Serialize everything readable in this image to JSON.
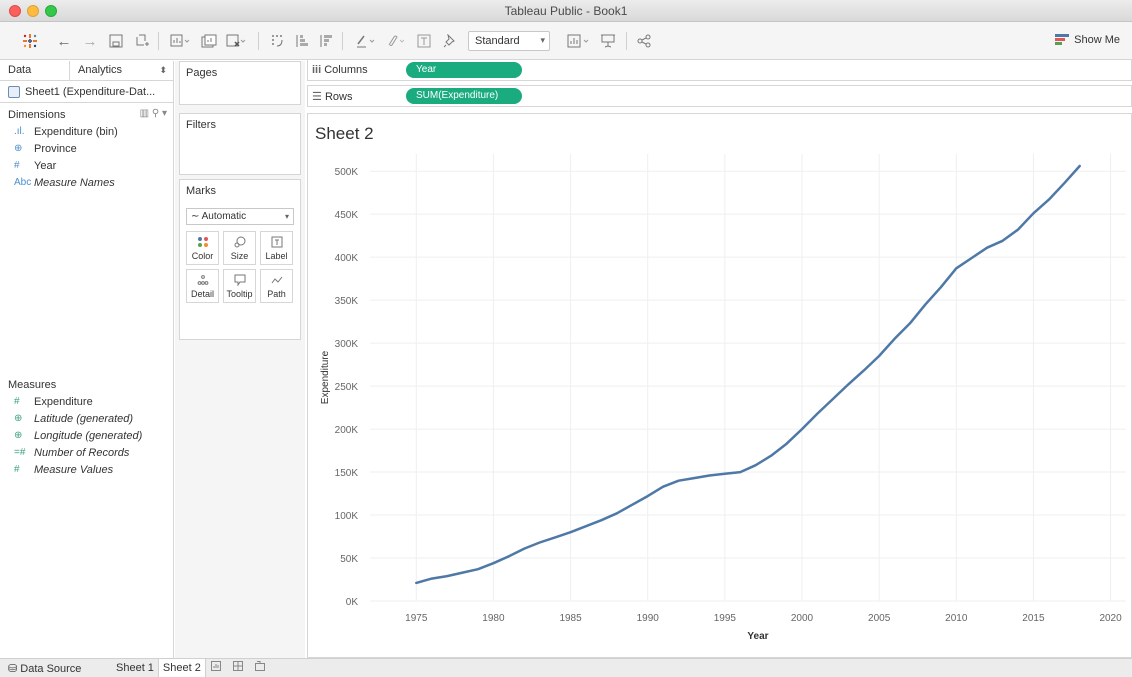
{
  "window": {
    "title": "Tableau Public - Book1"
  },
  "toolbar": {
    "fit_value": "Standard",
    "show_me_label": "Show Me"
  },
  "data_pane": {
    "tabs": [
      "Data",
      "Analytics"
    ],
    "source": "Sheet1 (Expenditure-Dat...",
    "dimensions_label": "Dimensions",
    "dimensions": [
      {
        "icon": "bin-icon",
        "glyph": ".ıl.",
        "label": "Expenditure (bin)",
        "italic": false
      },
      {
        "icon": "globe-icon",
        "glyph": "⊕",
        "label": "Province",
        "italic": false
      },
      {
        "icon": "number-icon",
        "glyph": "#",
        "label": "Year",
        "italic": false
      },
      {
        "icon": "text-icon",
        "glyph": "Abc",
        "label": "Measure Names",
        "italic": true
      }
    ],
    "measures_label": "Measures",
    "measures": [
      {
        "icon": "number-icon",
        "glyph": "#",
        "label": "Expenditure",
        "italic": false
      },
      {
        "icon": "globe-icon",
        "glyph": "⊕",
        "label": "Latitude (generated)",
        "italic": true
      },
      {
        "icon": "globe-icon",
        "glyph": "⊕",
        "label": "Longitude (generated)",
        "italic": true
      },
      {
        "icon": "number-icon",
        "glyph": "=#",
        "label": "Number of Records",
        "italic": true
      },
      {
        "icon": "number-icon",
        "glyph": "#",
        "label": "Measure Values",
        "italic": true
      }
    ]
  },
  "cards": {
    "pages": "Pages",
    "filters": "Filters",
    "marks": "Marks",
    "marks_type": "Automatic",
    "mark_buttons": [
      {
        "icon": "color-icon",
        "label": "Color"
      },
      {
        "icon": "size-icon",
        "label": "Size"
      },
      {
        "icon": "label-icon",
        "label": "Label"
      },
      {
        "icon": "detail-icon",
        "label": "Detail"
      },
      {
        "icon": "tooltip-icon",
        "label": "Tooltip"
      },
      {
        "icon": "path-icon",
        "label": "Path"
      }
    ]
  },
  "shelves": {
    "columns_label": "Columns",
    "columns_pill": "Year",
    "rows_label": "Rows",
    "rows_pill": "SUM(Expenditure)"
  },
  "sheet": {
    "title": "Sheet 2"
  },
  "bottom_tabs": {
    "data_source": "Data Source",
    "sheets": [
      "Sheet 1",
      "Sheet 2"
    ],
    "active_sheet": "Sheet 2"
  },
  "colors": {
    "line": "#4e79a7",
    "pill": "#1aab7e"
  },
  "chart_data": {
    "type": "line",
    "title": "Sheet 2",
    "xlabel": "Year",
    "ylabel": "Expenditure",
    "xlim": [
      1972,
      2021
    ],
    "ylim": [
      0,
      520000
    ],
    "x_ticks": [
      1975,
      1980,
      1985,
      1990,
      1995,
      2000,
      2005,
      2010,
      2015,
      2020
    ],
    "y_ticks": [
      0,
      50000,
      100000,
      150000,
      200000,
      250000,
      300000,
      350000,
      400000,
      450000,
      500000
    ],
    "y_tick_labels": [
      "0K",
      "50K",
      "100K",
      "150K",
      "200K",
      "250K",
      "300K",
      "350K",
      "400K",
      "450K",
      "500K"
    ],
    "grid": true,
    "series": [
      {
        "x": [
          1975,
          1976,
          1977,
          1978,
          1979,
          1980,
          1981,
          1982,
          1983,
          1984,
          1985,
          1986,
          1987,
          1988,
          1989,
          1990,
          1991,
          1992,
          1993,
          1994,
          1995,
          1996,
          1997,
          1998,
          1999,
          2000,
          2001,
          2002,
          2003,
          2004,
          2005,
          2006,
          2007,
          2008,
          2009,
          2010,
          2011,
          2012,
          2013,
          2014,
          2015,
          2016,
          2017,
          2018
        ],
        "values": [
          21000,
          26000,
          29000,
          33000,
          37000,
          44000,
          52000,
          61000,
          68000,
          74000,
          80000,
          87000,
          94000,
          102000,
          112000,
          122000,
          133000,
          140000,
          143000,
          146000,
          148000,
          150000,
          158000,
          169000,
          183000,
          200000,
          218000,
          235000,
          252000,
          268000,
          285000,
          305000,
          323000,
          345000,
          365000,
          387000,
          399000,
          411000,
          419000,
          432000,
          451000,
          467000,
          486000,
          506000
        ]
      }
    ]
  }
}
